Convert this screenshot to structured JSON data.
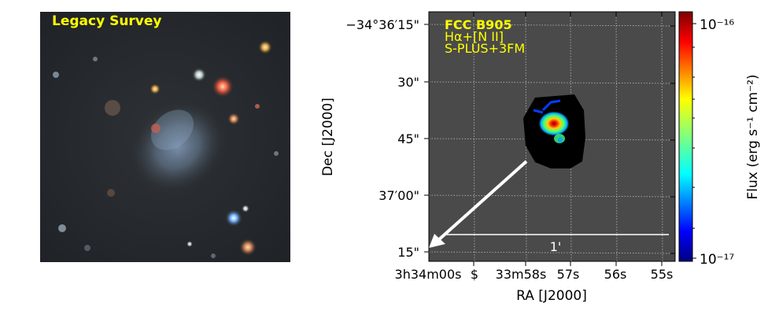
{
  "left_panel": {
    "label": "Legacy Survey"
  },
  "right_panel": {
    "title": "FCC B905",
    "line2": "Hα+[N II]",
    "line3": "S-PLUS+3FM",
    "scale_label": "1'",
    "colorbar": {
      "label": "Flux (erg s⁻¹ cm⁻²)",
      "top_tick": "10⁻¹⁶",
      "bottom_tick": "10⁻¹⁷"
    },
    "axes": {
      "xlabel": "RA [J2000]",
      "ylabel": "Dec [J2000]",
      "y_ticks": [
        "−34°36′15\"",
        "30\"",
        "45\"",
        "37′00\"",
        "15\""
      ],
      "x_ticks": [
        "3h34m00s",
        "$",
        "33m58s",
        "57s",
        "56s",
        "55s"
      ]
    }
  },
  "colors": {
    "label_yellow": "#ffff00",
    "panel_gray": "#4a4a4a",
    "arrow_white": "#ffffff"
  }
}
